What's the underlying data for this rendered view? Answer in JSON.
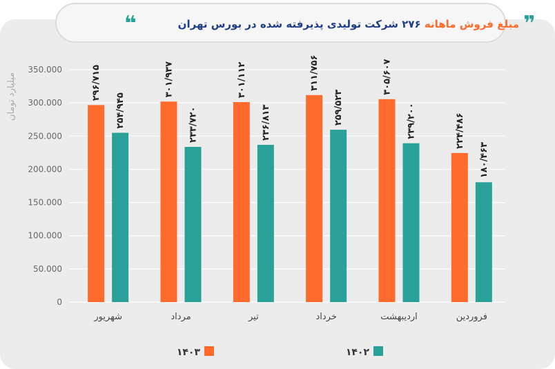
{
  "title": {
    "part1": "مبلغ فروش ماهانه",
    "part2": "۲۷۶ شرکت تولیدی پذیرفته شده در بورس تهران",
    "quote_left": "❝",
    "quote_right": "❞"
  },
  "chart_data": {
    "type": "bar",
    "categories": [
      "فروردین",
      "اردیبهشت",
      "خرداد",
      "تیر",
      "مرداد",
      "شهریور"
    ],
    "series": [
      {
        "name": "۱۴۰۳",
        "color": "#ff6b2c",
        "values": [
          224486,
          305607,
          311756,
          301112,
          301937,
          296715
        ],
        "labels": [
          "۲۲۴/۴۸۶",
          "۳۰۵/۶۰۷",
          "۳۱۱/۷۵۶",
          "۳۰۱/۱۱۲",
          "۳۰۱/۹۳۷",
          "۲۹۶/۷۱۵"
        ]
      },
      {
        "name": "۱۴۰۲",
        "color": "#2aa198",
        "values": [
          180463,
          239200,
          259523,
          236813,
          233720,
          254945
        ],
        "labels": [
          "۱۸۰/۴۶۳",
          "۲۳۹/۲۰۰",
          "۲۵۹/۵۲۳",
          "۲۳۶/۸۱۳",
          "۲۳۳/۷۲۰",
          "۲۵۴/۹۴۵"
        ]
      }
    ],
    "ylabel": "میلیارد تومان",
    "ylim": [
      0,
      350000
    ],
    "yticks": [
      0,
      50000,
      100000,
      150000,
      200000,
      250000,
      300000,
      350000
    ],
    "ytick_labels": [
      "0",
      "50.000",
      "100.000",
      "150.000",
      "200.000",
      "250.000",
      "300.000",
      "350.000"
    ],
    "grid": true,
    "legend_position": "bottom"
  }
}
